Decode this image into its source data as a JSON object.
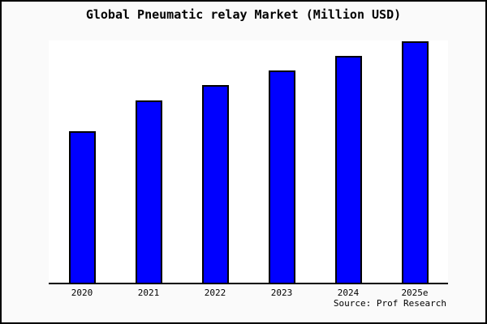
{
  "window": {
    "background_color": "#fafafa",
    "plot_background_color": "#ffffff",
    "frame_border_color": "#000000"
  },
  "chart_data": {
    "type": "bar",
    "title": "Global Pneumatic relay Market (Million USD)",
    "categories": [
      "2020",
      "2021",
      "2022",
      "2023",
      "2024",
      "2025e"
    ],
    "values": [
      187,
      225,
      244,
      262,
      280,
      298
    ],
    "values_note": "y-axis is unlabeled; values are pixel-estimated relative heights",
    "ylim": [
      0,
      299
    ],
    "xlabel": "",
    "ylabel": "",
    "y_axis_visible": false,
    "gridlines": false,
    "legend": "none",
    "bar_color": "#0000ff",
    "bar_border_color": "#000000",
    "axis_line_color": "#000000",
    "source_note": "Source: Prof Research"
  }
}
